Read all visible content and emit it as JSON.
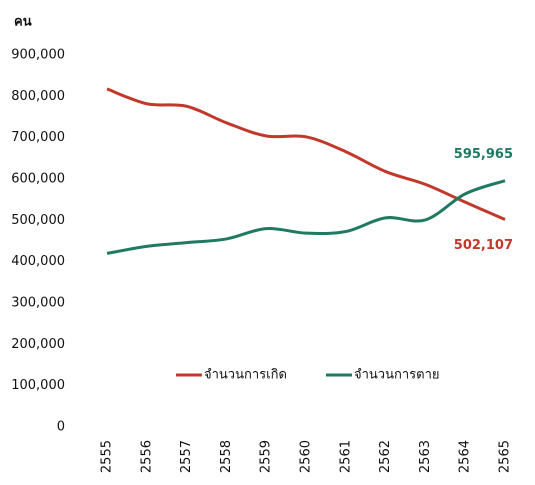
{
  "chart_data": {
    "type": "line",
    "y_axis_label": "คน",
    "categories": [
      "2555",
      "2556",
      "2557",
      "2558",
      "2559",
      "2560",
      "2561",
      "2562",
      "2563",
      "2564",
      "2565"
    ],
    "series": [
      {
        "name": "จำนวนการเกิด",
        "color": "#c0392b",
        "values": [
          818000,
          782000,
          776000,
          736000,
          704000,
          702000,
          666000,
          618000,
          587000,
          544000,
          502107
        ],
        "value_labels": [
          null,
          null,
          null,
          null,
          null,
          null,
          null,
          null,
          null,
          null,
          "502,107"
        ]
      },
      {
        "name": "จำนวนการตาย",
        "color": "#1f7a61",
        "values": [
          420000,
          437000,
          446000,
          455000,
          480000,
          469000,
          473000,
          506000,
          501000,
          564000,
          595965
        ],
        "value_labels": [
          null,
          null,
          null,
          null,
          null,
          null,
          null,
          null,
          null,
          null,
          "595,965"
        ]
      }
    ],
    "ylim": [
      0,
      900000
    ],
    "yticks": [
      0,
      {
        "value": 100000,
        "label": "100,000"
      },
      {
        "value": 200000,
        "label": "200,000"
      },
      {
        "value": 300000,
        "label": "300,000"
      },
      {
        "value": 400000,
        "label": "400,000"
      },
      {
        "value": 500000,
        "label": "500,000"
      },
      {
        "value": 600000,
        "label": "600,000"
      },
      {
        "value": 700000,
        "label": "700,000"
      },
      {
        "value": 800000,
        "label": "800,000"
      },
      {
        "value": 900000,
        "label": "900,000"
      }
    ],
    "grid": false,
    "legend": "inside-bottom"
  }
}
